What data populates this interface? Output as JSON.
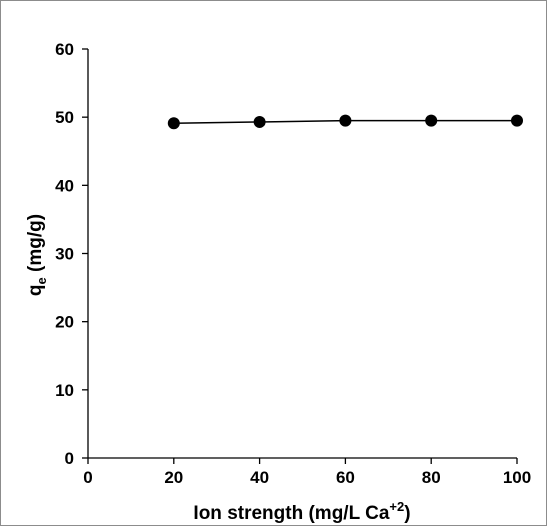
{
  "chart_data": {
    "type": "line",
    "x": [
      20,
      40,
      60,
      80,
      100
    ],
    "series": [
      {
        "values": [
          49.1,
          49.3,
          49.5,
          49.5,
          49.5
        ],
        "color": "#000000",
        "marker": "circle"
      }
    ],
    "xlabel": "Ion strength (mg/L Ca",
    "xlabel_superscript": "+2",
    "xlabel_suffix": ")",
    "ylabel_main": "q",
    "ylabel_subscript": "e",
    "ylabel_rest": " (mg/g)",
    "xlim": [
      0,
      100
    ],
    "ylim": [
      0,
      60
    ],
    "xticks": [
      "0",
      "20",
      "40",
      "60",
      "80",
      "100"
    ],
    "yticks": [
      "0",
      "10",
      "20",
      "30",
      "40",
      "50",
      "60"
    ],
    "grid": false,
    "legend": "none"
  }
}
